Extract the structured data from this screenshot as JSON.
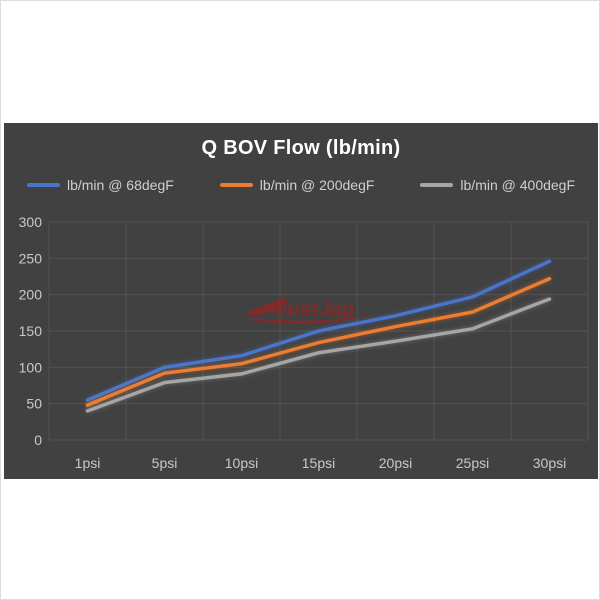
{
  "chart_data": {
    "type": "line",
    "title": "Q BOV Flow (lb/min)",
    "categories": [
      "1psi",
      "5psi",
      "10psi",
      "15psi",
      "20psi",
      "25psi",
      "30psi"
    ],
    "series": [
      {
        "name": "lb/min @ 68degF",
        "color": "#4876cc",
        "values": [
          55,
          100,
          116,
          150,
          171,
          197,
          246
        ]
      },
      {
        "name": "lb/min @ 200degF",
        "color": "#ed7d31",
        "values": [
          48,
          92,
          105,
          134,
          156,
          176,
          222
        ]
      },
      {
        "name": "lb/min @ 400degF",
        "color": "#a6a6a6",
        "values": [
          40,
          79,
          91,
          120,
          136,
          153,
          194
        ]
      }
    ],
    "ylim": [
      0,
      300
    ],
    "ytick_interval": 50,
    "ytick_labels": [
      "0",
      "50",
      "100",
      "150",
      "200",
      "250",
      "300"
    ],
    "xlabel": "",
    "ylabel": "",
    "grid": true,
    "legend_position": "top"
  },
  "watermark": {
    "text": "JustJap",
    "color": "#8f2525"
  },
  "colors": {
    "panel_background": "#414141",
    "gridline": "#535353",
    "axis_label": "#c9c9c9",
    "title": "#ffffff",
    "page_background": "#ffffff"
  }
}
